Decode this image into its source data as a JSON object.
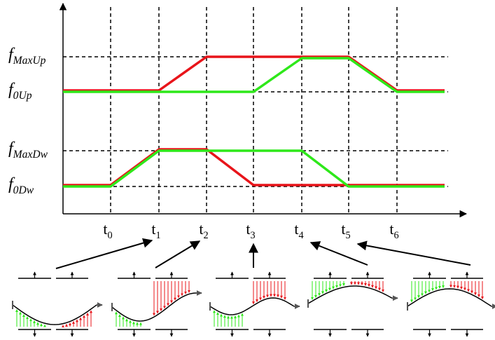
{
  "levels": [
    {
      "base": "f",
      "sub": "MaxUp"
    },
    {
      "base": "f",
      "sub": "0Up"
    },
    {
      "base": "f",
      "sub": "MaxDw"
    },
    {
      "base": "f",
      "sub": "0Dw"
    }
  ],
  "times": [
    {
      "base": "t",
      "sub": "0"
    },
    {
      "base": "t",
      "sub": "1"
    },
    {
      "base": "t",
      "sub": "2"
    },
    {
      "base": "t",
      "sub": "3"
    },
    {
      "base": "t",
      "sub": "4"
    },
    {
      "base": "t",
      "sub": "5"
    },
    {
      "base": "t",
      "sub": "6"
    }
  ]
}
